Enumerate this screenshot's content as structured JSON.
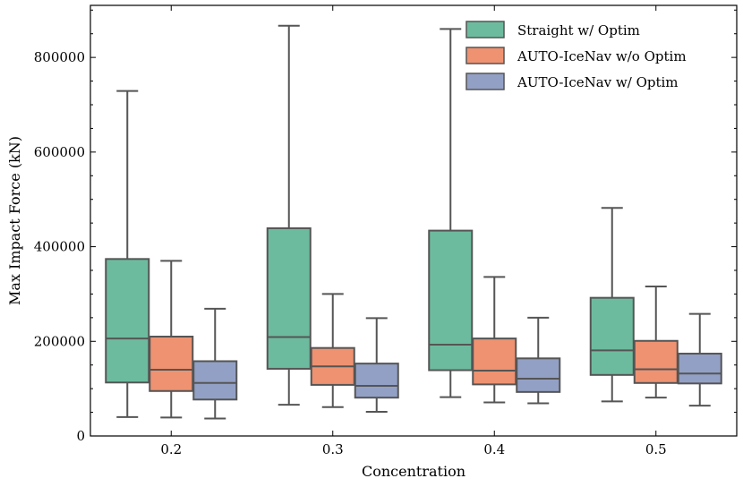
{
  "chart_data": {
    "type": "box",
    "xlabel": "Concentration",
    "ylabel": "Max Impact Force (kN)",
    "categories": [
      "0.2",
      "0.3",
      "0.4",
      "0.5"
    ],
    "ylim": [
      0,
      910000
    ],
    "yticks": [
      0,
      200000,
      400000,
      600000,
      800000
    ],
    "ytick_labels": [
      "0",
      "200000",
      "400000",
      "600000",
      "800000"
    ],
    "legend_position": "top-right",
    "grid": false,
    "series": [
      {
        "name": "Straight w/ Optim",
        "color": "#6dbb9e",
        "boxes": [
          {
            "whislo": 40000,
            "q1": 113000,
            "med": 206000,
            "q3": 374000,
            "whishi": 729000
          },
          {
            "whislo": 66000,
            "q1": 142000,
            "med": 209000,
            "q3": 439000,
            "whishi": 867000
          },
          {
            "whislo": 82000,
            "q1": 139000,
            "med": 193000,
            "q3": 434000,
            "whishi": 860000
          },
          {
            "whislo": 73000,
            "q1": 129000,
            "med": 181000,
            "q3": 292000,
            "whishi": 482000
          }
        ]
      },
      {
        "name": "AUTO-IceNav w/o Optim",
        "color": "#ee9271",
        "boxes": [
          {
            "whislo": 39000,
            "q1": 95000,
            "med": 140000,
            "q3": 210000,
            "whishi": 370000
          },
          {
            "whislo": 61000,
            "q1": 108000,
            "med": 147000,
            "q3": 186000,
            "whishi": 300000
          },
          {
            "whislo": 71000,
            "q1": 109000,
            "med": 138000,
            "q3": 206000,
            "whishi": 336000
          },
          {
            "whislo": 81000,
            "q1": 112000,
            "med": 141000,
            "q3": 201000,
            "whishi": 316000
          }
        ]
      },
      {
        "name": "AUTO-IceNav w/ Optim",
        "color": "#93a0c5",
        "boxes": [
          {
            "whislo": 37000,
            "q1": 77000,
            "med": 112000,
            "q3": 158000,
            "whishi": 269000
          },
          {
            "whislo": 51000,
            "q1": 81000,
            "med": 106000,
            "q3": 153000,
            "whishi": 249000
          },
          {
            "whislo": 69000,
            "q1": 93000,
            "med": 121000,
            "q3": 164000,
            "whishi": 250000
          },
          {
            "whislo": 64000,
            "q1": 111000,
            "med": 132000,
            "q3": 174000,
            "whishi": 258000
          }
        ]
      }
    ]
  }
}
